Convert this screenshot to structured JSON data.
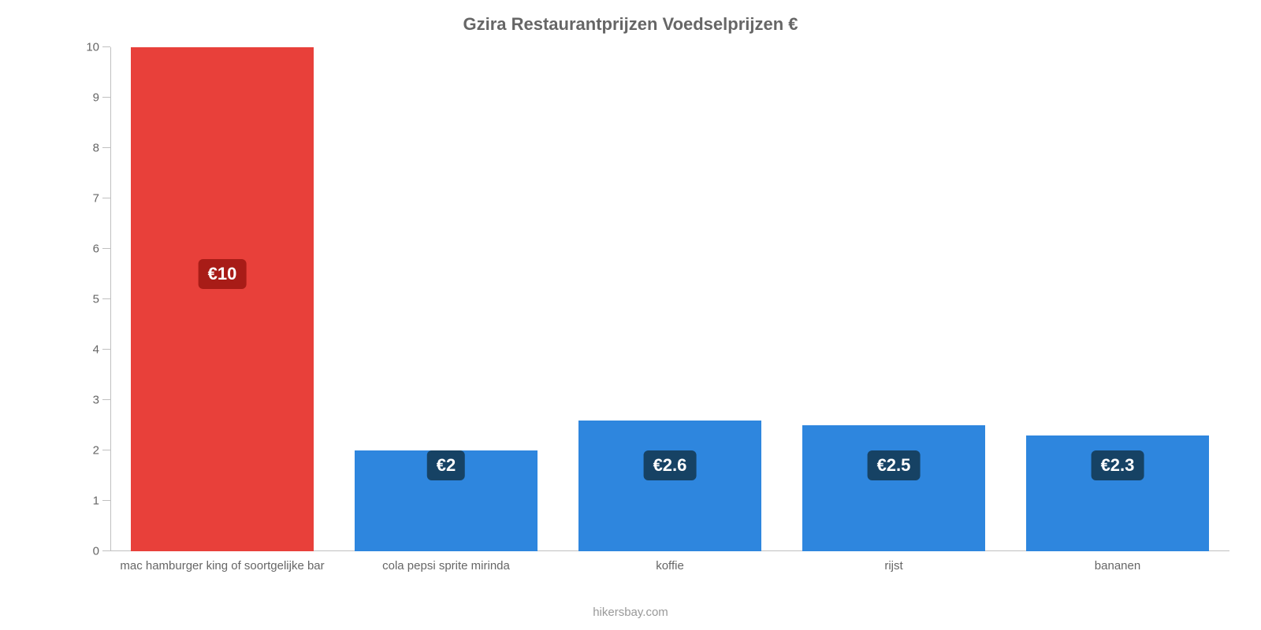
{
  "chart": {
    "type": "bar",
    "title": "Gzira Restaurantprijzen Voedselprijzen €",
    "title_fontsize": 22,
    "title_color": "#666666",
    "credit": "hikersbay.com",
    "credit_color": "#999999",
    "background_color": "#ffffff",
    "axis_color": "#c0c0c0",
    "tick_label_color": "#666666",
    "tick_label_fontsize": 15,
    "ylim": [
      0,
      10
    ],
    "ytick_step": 1,
    "yticks": [
      0,
      1,
      2,
      3,
      4,
      5,
      6,
      7,
      8,
      9,
      10
    ],
    "bar_width_ratio": 0.82,
    "value_label_fontsize": 22,
    "cat_label_fontsize": 15,
    "columns": 5,
    "bars": [
      {
        "category": "mac hamburger king of soortgelijke bar",
        "value": 10,
        "display": "€10",
        "color": "#e8403a",
        "badge_bg": "#a81c17",
        "badge_at_y": 5.5
      },
      {
        "category": "cola pepsi sprite mirinda",
        "value": 2,
        "display": "€2",
        "color": "#2e86de",
        "badge_bg": "#164264",
        "badge_at_y": 1.7
      },
      {
        "category": "koffie",
        "value": 2.6,
        "display": "€2.6",
        "color": "#2e86de",
        "badge_bg": "#164264",
        "badge_at_y": 1.7
      },
      {
        "category": "rijst",
        "value": 2.5,
        "display": "€2.5",
        "color": "#2e86de",
        "badge_bg": "#164264",
        "badge_at_y": 1.7
      },
      {
        "category": "bananen",
        "value": 2.3,
        "display": "€2.3",
        "color": "#2e86de",
        "badge_bg": "#164264",
        "badge_at_y": 1.7
      }
    ]
  }
}
